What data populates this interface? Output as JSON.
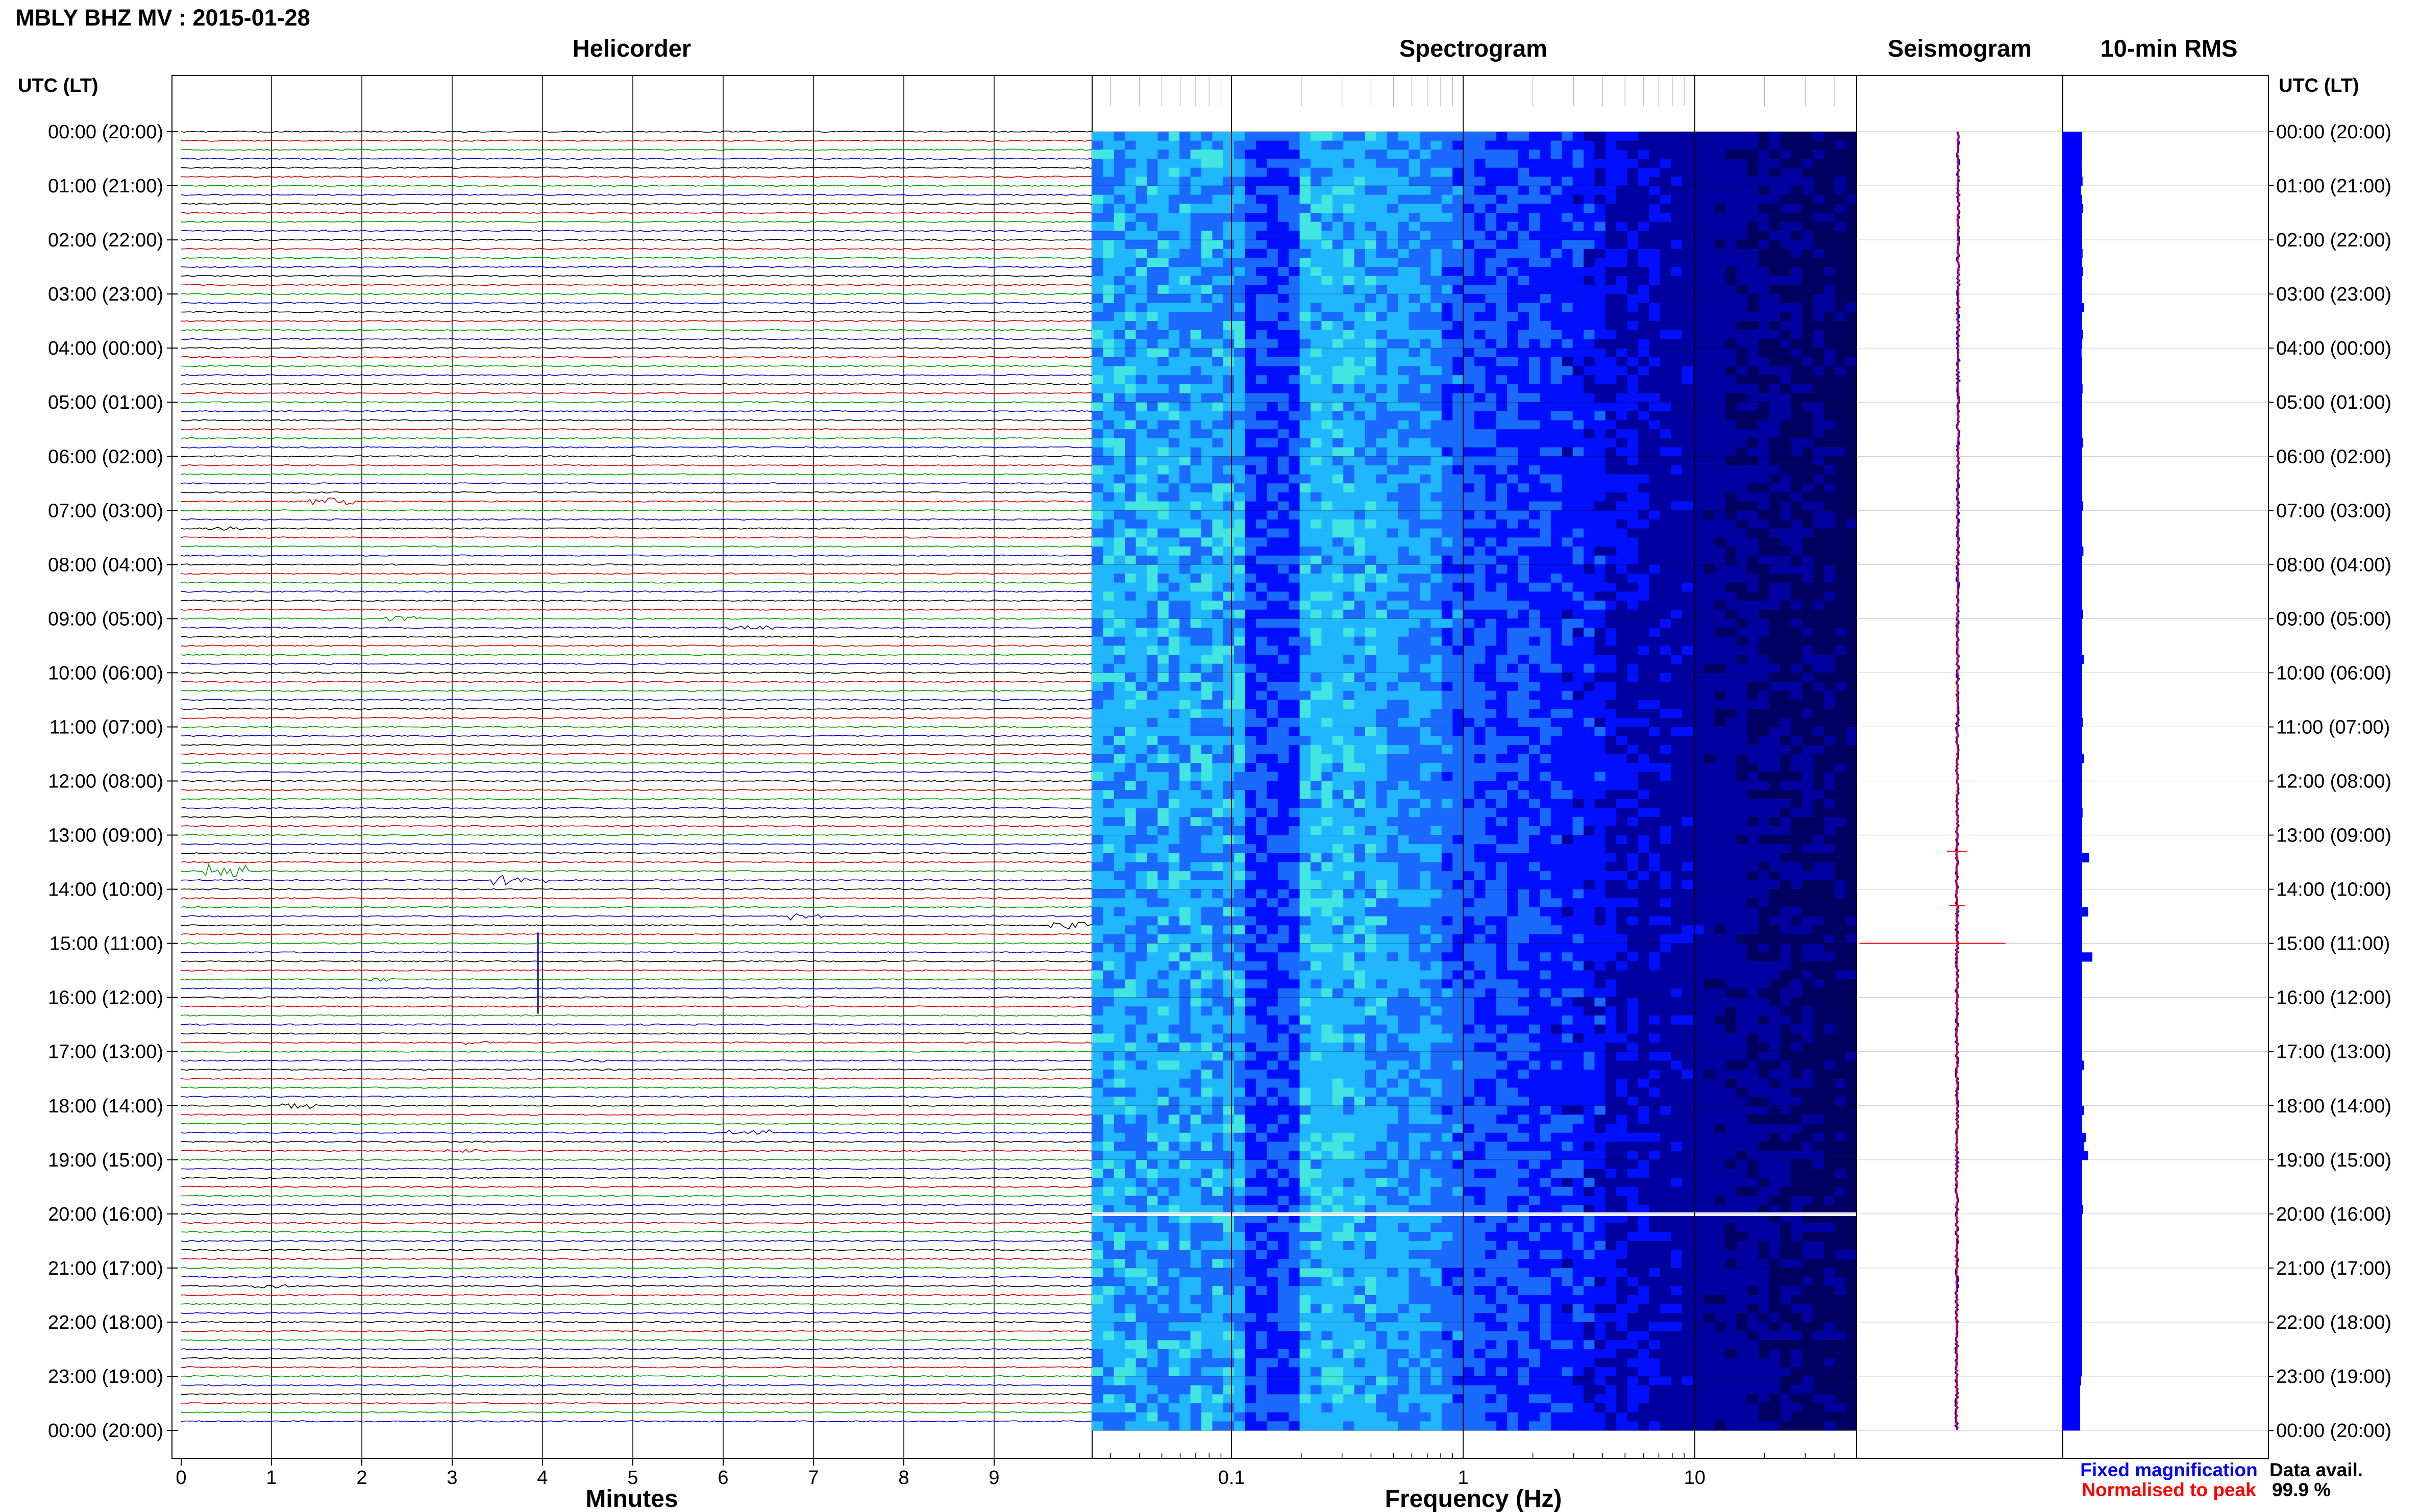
{
  "page": {
    "title": "MBLY BHZ MV : 2015-01-28",
    "tz_header_left": "UTC (LT)",
    "tz_header_right": "UTC (LT)",
    "panels": {
      "helicorder": "Helicorder",
      "spectrogram": "Spectrogram",
      "seismogram": "Seismogram",
      "rms": "10-min RMS"
    },
    "x_labels": {
      "helicorder": "Minutes",
      "spectrogram": "Frequency (Hz)"
    },
    "legend": {
      "fixed": "Fixed magnification",
      "normalised": "Normalised to peak"
    },
    "availability": {
      "label": "Data avail.",
      "value": "99.9 %"
    }
  },
  "colors": {
    "trace_cycle": [
      "#000000",
      "#cc0000",
      "#009900",
      "#0000cc"
    ],
    "fixed": "#0000ff",
    "normalised": "#ff0000",
    "rms_bar": "#0000ff",
    "spectrogram_ramp": [
      "#000060",
      "#0000a0",
      "#0010ff",
      "#1a6aff",
      "#21b7ff",
      "#42e5e0",
      "#8cf2a0"
    ]
  },
  "chart_data": {
    "type": "heatmap",
    "time_labels": [
      "00:00 (20:00)",
      "01:00 (21:00)",
      "02:00 (22:00)",
      "03:00 (23:00)",
      "04:00 (00:00)",
      "05:00 (01:00)",
      "06:00 (02:00)",
      "07:00 (03:00)",
      "08:00 (04:00)",
      "09:00 (05:00)",
      "10:00 (06:00)",
      "11:00 (07:00)",
      "12:00 (08:00)",
      "13:00 (09:00)",
      "14:00 (10:00)",
      "15:00 (11:00)",
      "16:00 (12:00)",
      "17:00 (13:00)",
      "18:00 (14:00)",
      "19:00 (15:00)",
      "20:00 (16:00)",
      "21:00 (17:00)",
      "22:00 (18:00)",
      "23:00 (19:00)",
      "00:00 (20:00)"
    ],
    "helicorder": {
      "minutes_ticks": [
        "0",
        "1",
        "2",
        "3",
        "4",
        "5",
        "6",
        "7",
        "8",
        "9"
      ],
      "xlim": [
        0,
        10
      ],
      "lines_per_hour": 6,
      "hours": 24
    },
    "spectrogram": {
      "x_scale": "log",
      "xlim": [
        0.025,
        50
      ],
      "freq_tick_labels": [
        {
          "value": 0.1,
          "label": "0.1"
        },
        {
          "value": 1,
          "label": "1"
        },
        {
          "value": 10,
          "label": "10"
        }
      ],
      "gap_hour_utc": 20.0
    },
    "rms_10min": {
      "values": [
        1.0,
        1.0,
        1.0,
        0.98,
        1.0,
        1.02,
        0.95,
        1.0,
        1.05,
        1.0,
        1.0,
        1.0,
        1.0,
        1.02,
        1.0,
        1.04,
        1.0,
        1.0,
        1.0,
        1.1,
        1.0,
        1.0,
        1.03,
        1.0,
        0.97,
        1.0,
        1.0,
        1.0,
        1.02,
        1.0,
        1.0,
        1.0,
        1.0,
        1.0,
        1.04,
        1.0,
        1.0,
        1.0,
        1.0,
        1.0,
        1.0,
        1.05,
        1.0,
        1.0,
        1.0,
        1.0,
        1.06,
        1.0,
        1.0,
        1.0,
        1.0,
        1.0,
        1.0,
        1.05,
        1.0,
        1.0,
        1.0,
        1.0,
        1.08,
        1.0,
        1.0,
        1.0,
        1.0,
        1.0,
        1.0,
        1.03,
        1.0,
        1.0,
        1.0,
        1.1,
        1.0,
        1.0,
        1.0,
        1.0,
        1.0,
        1.02,
        1.0,
        1.0,
        1.0,
        1.0,
        1.35,
        1.0,
        1.0,
        1.0,
        1.0,
        1.0,
        1.3,
        1.0,
        1.0,
        1.0,
        1.0,
        1.5,
        1.0,
        1.0,
        1.0,
        1.0,
        1.0,
        1.0,
        1.0,
        1.0,
        1.0,
        1.0,
        1.0,
        1.1,
        1.0,
        1.0,
        1.0,
        1.0,
        1.1,
        1.0,
        1.0,
        1.2,
        1.1,
        1.3,
        1.0,
        1.0,
        1.0,
        1.0,
        1.0,
        1.05,
        1.0,
        1.0,
        1.0,
        1.0,
        1.0,
        1.0,
        1.0,
        1.0,
        1.0,
        1.0,
        1.0,
        1.0,
        1.0,
        1.0,
        1.0,
        1.0,
        1.0,
        1.0,
        0.95,
        0.9,
        0.9,
        0.9,
        0.9,
        0.9
      ]
    }
  }
}
